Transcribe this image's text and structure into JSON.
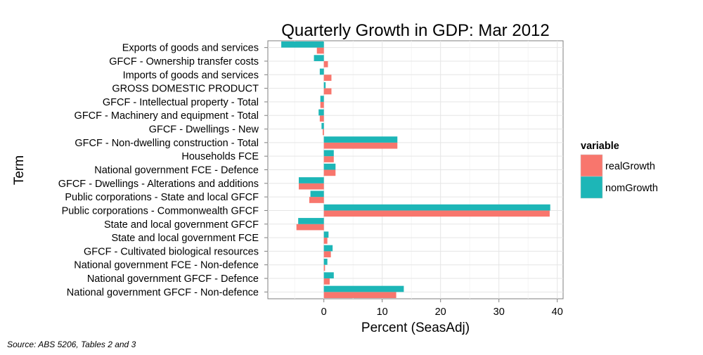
{
  "chart_data": {
    "type": "bar",
    "orientation": "horizontal",
    "title": "Quarterly Growth in GDP: Mar 2012",
    "xlabel": "Percent (SeasAdj)",
    "ylabel": "Term",
    "xlim": [
      -9.6,
      41.0
    ],
    "xticks": [
      0,
      10,
      20,
      30,
      40
    ],
    "grid": true,
    "legend": {
      "title": "variable",
      "position": "right",
      "entries": [
        "realGrowth",
        "nomGrowth"
      ]
    },
    "colors": {
      "realGrowth": "#F8766D",
      "nomGrowth": "#1DB6B7"
    },
    "categories": [
      "Exports of goods and services",
      "GFCF - Ownership transfer costs",
      "Imports of goods and services",
      "GROSS DOMESTIC PRODUCT",
      "GFCF - Intellectual property - Total",
      "GFCF - Machinery and equipment - Total",
      "GFCF - Dwellings - New",
      "GFCF - Non-dwelling construction - Total",
      "Households FCE",
      "National government FCE - Defence",
      "GFCF - Dwellings - Alterations and additions",
      "Public corporations - State and local GFCF",
      "Public corporations - Commonwealth GFCF",
      "State and local government GFCF",
      "State and local government FCE",
      "GFCF - Cultivated biological resources",
      "National government FCE - Non-defence",
      "National government GFCF - Defence",
      "National government GFCF - Non-defence"
    ],
    "series": [
      {
        "name": "realGrowth",
        "values": [
          -1.2,
          0.7,
          1.3,
          1.3,
          -0.6,
          -0.7,
          -0.2,
          12.6,
          1.7,
          2.0,
          -4.3,
          -2.5,
          38.7,
          -4.7,
          0.6,
          1.2,
          0.2,
          1.0,
          12.4
        ]
      },
      {
        "name": "nomGrowth",
        "values": [
          -7.3,
          -1.7,
          -0.7,
          0.3,
          -0.6,
          -0.9,
          -0.4,
          12.6,
          1.7,
          2.0,
          -4.3,
          -2.3,
          38.8,
          -4.4,
          0.8,
          1.5,
          0.6,
          1.7,
          13.7
        ]
      }
    ],
    "source": "Source: ABS 5206, Tables 2 and 3"
  }
}
